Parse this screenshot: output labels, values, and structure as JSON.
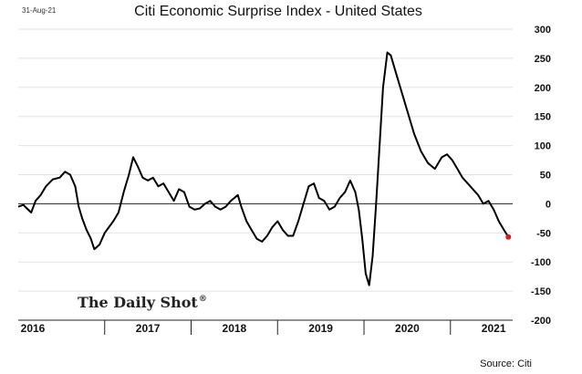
{
  "header": {
    "date_stamp": "31-Aug-21"
  },
  "brand": {
    "label": "The Daily Shot",
    "mark": "®"
  },
  "footer": {
    "source": "Source: Citi"
  },
  "colors": {
    "line": "#000000",
    "endpoint": "#cc2222",
    "grid": "#e2e2e2"
  },
  "chart_data": {
    "type": "line",
    "title": "Citi Economic Surprise Index - United States",
    "xlabel": "",
    "ylabel": "",
    "x_labels": [
      "2016",
      "2017",
      "2018",
      "2019",
      "2020",
      "2021"
    ],
    "xlim": [
      2016.0,
      2021.72
    ],
    "ylim": [
      -200,
      300
    ],
    "y_ticks": [
      300,
      250,
      200,
      150,
      100,
      50,
      0,
      -50,
      -100,
      -150,
      -200
    ],
    "grid": true,
    "legend": "none",
    "series": [
      {
        "points": [
          [
            2016.0,
            -5
          ],
          [
            2016.06,
            -2
          ],
          [
            2016.1,
            -8
          ],
          [
            2016.15,
            -15
          ],
          [
            2016.2,
            5
          ],
          [
            2016.26,
            15
          ],
          [
            2016.32,
            30
          ],
          [
            2016.4,
            42
          ],
          [
            2016.48,
            45
          ],
          [
            2016.54,
            55
          ],
          [
            2016.6,
            50
          ],
          [
            2016.66,
            30
          ],
          [
            2016.7,
            -5
          ],
          [
            2016.74,
            -25
          ],
          [
            2016.79,
            -45
          ],
          [
            2016.84,
            -60
          ],
          [
            2016.88,
            -78
          ],
          [
            2016.94,
            -70
          ],
          [
            2017.0,
            -50
          ],
          [
            2017.05,
            -40
          ],
          [
            2017.1,
            -30
          ],
          [
            2017.16,
            -15
          ],
          [
            2017.22,
            20
          ],
          [
            2017.28,
            50
          ],
          [
            2017.33,
            80
          ],
          [
            2017.38,
            65
          ],
          [
            2017.44,
            45
          ],
          [
            2017.5,
            40
          ],
          [
            2017.56,
            45
          ],
          [
            2017.62,
            30
          ],
          [
            2017.68,
            35
          ],
          [
            2017.74,
            20
          ],
          [
            2017.8,
            5
          ],
          [
            2017.86,
            25
          ],
          [
            2017.92,
            20
          ],
          [
            2017.98,
            -5
          ],
          [
            2018.04,
            -10
          ],
          [
            2018.1,
            -8
          ],
          [
            2018.16,
            0
          ],
          [
            2018.22,
            5
          ],
          [
            2018.28,
            -5
          ],
          [
            2018.34,
            -10
          ],
          [
            2018.4,
            -5
          ],
          [
            2018.46,
            5
          ],
          [
            2018.54,
            15
          ],
          [
            2018.58,
            -5
          ],
          [
            2018.64,
            -30
          ],
          [
            2018.7,
            -45
          ],
          [
            2018.76,
            -60
          ],
          [
            2018.82,
            -65
          ],
          [
            2018.88,
            -55
          ],
          [
            2018.94,
            -40
          ],
          [
            2019.0,
            -30
          ],
          [
            2019.06,
            -45
          ],
          [
            2019.12,
            -55
          ],
          [
            2019.18,
            -55
          ],
          [
            2019.24,
            -30
          ],
          [
            2019.3,
            0
          ],
          [
            2019.36,
            30
          ],
          [
            2019.42,
            35
          ],
          [
            2019.48,
            10
          ],
          [
            2019.54,
            5
          ],
          [
            2019.6,
            -10
          ],
          [
            2019.66,
            -5
          ],
          [
            2019.72,
            10
          ],
          [
            2019.78,
            20
          ],
          [
            2019.84,
            40
          ],
          [
            2019.9,
            20
          ],
          [
            2019.94,
            -10
          ],
          [
            2019.98,
            -60
          ],
          [
            2020.02,
            -120
          ],
          [
            2020.06,
            -140
          ],
          [
            2020.1,
            -90
          ],
          [
            2020.14,
            0
          ],
          [
            2020.18,
            100
          ],
          [
            2020.22,
            200
          ],
          [
            2020.27,
            260
          ],
          [
            2020.31,
            255
          ],
          [
            2020.36,
            230
          ],
          [
            2020.42,
            200
          ],
          [
            2020.5,
            160
          ],
          [
            2020.58,
            120
          ],
          [
            2020.66,
            90
          ],
          [
            2020.74,
            70
          ],
          [
            2020.82,
            60
          ],
          [
            2020.9,
            80
          ],
          [
            2020.96,
            85
          ],
          [
            2021.02,
            75
          ],
          [
            2021.08,
            60
          ],
          [
            2021.14,
            45
          ],
          [
            2021.2,
            35
          ],
          [
            2021.26,
            25
          ],
          [
            2021.32,
            15
          ],
          [
            2021.38,
            0
          ],
          [
            2021.44,
            5
          ],
          [
            2021.5,
            -10
          ],
          [
            2021.56,
            -30
          ],
          [
            2021.62,
            -45
          ],
          [
            2021.67,
            -57
          ]
        ]
      }
    ]
  }
}
